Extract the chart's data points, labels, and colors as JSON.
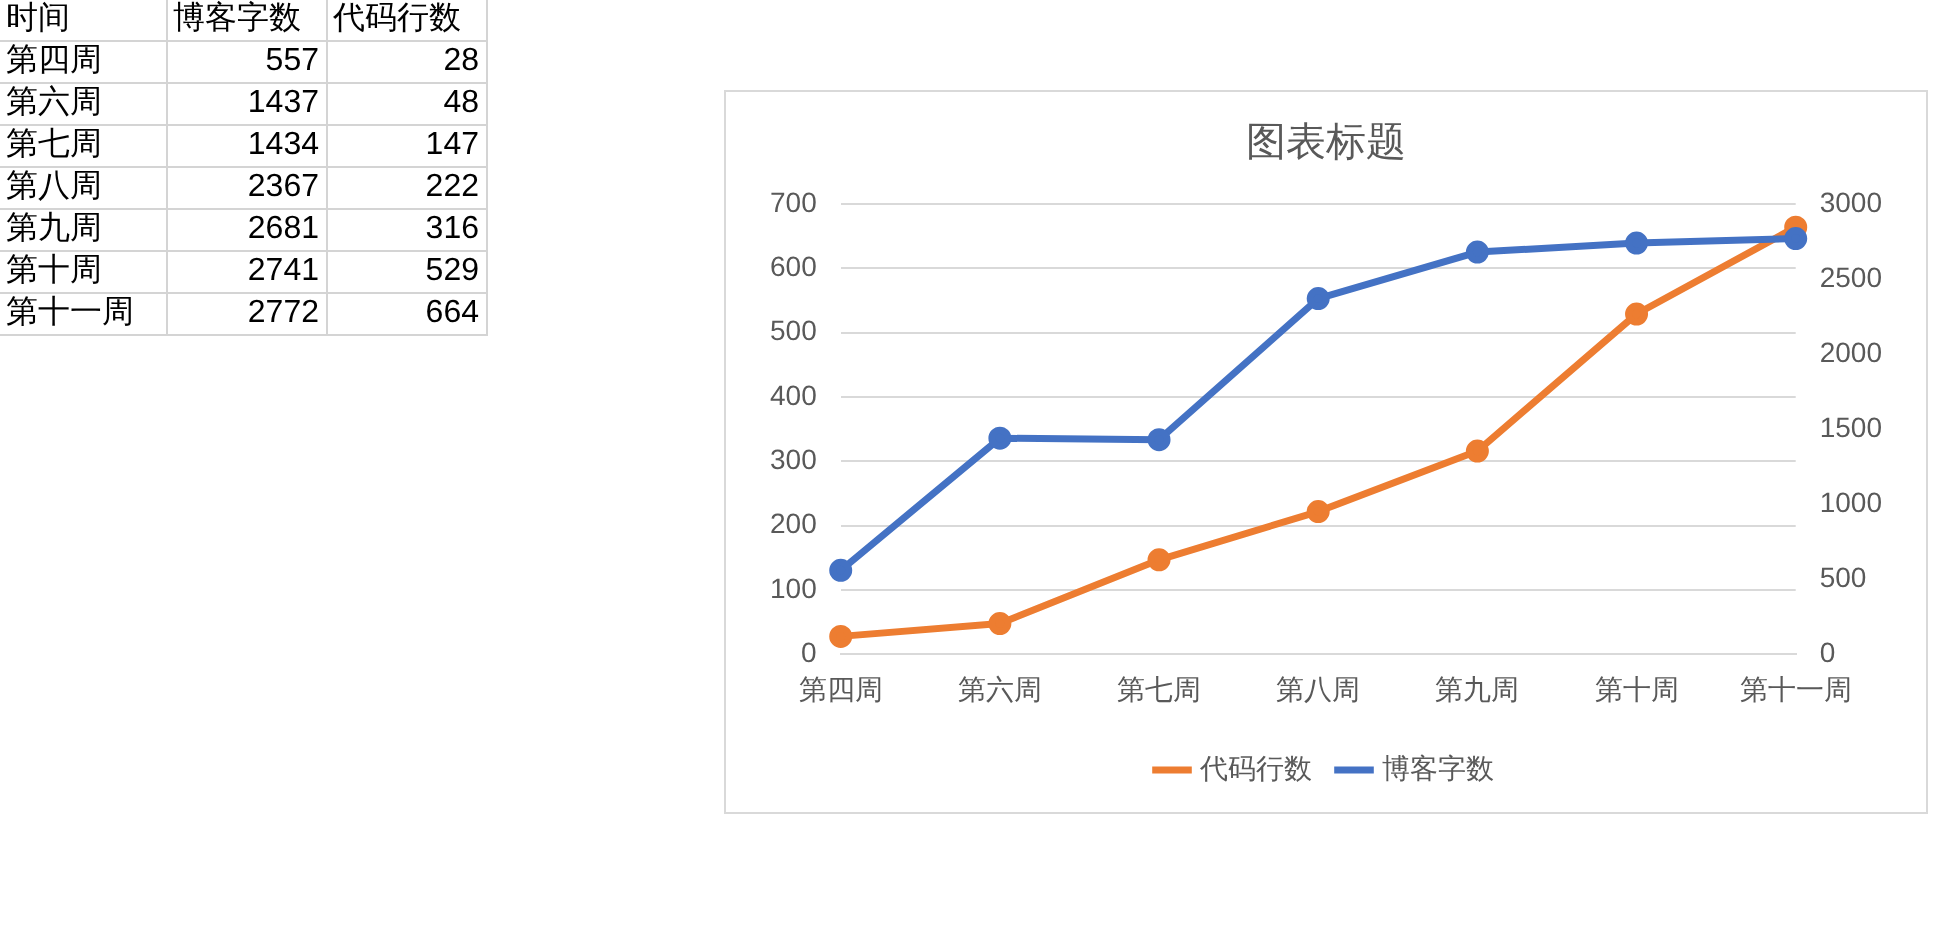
{
  "chart_data": [
    {
      "type": "other",
      "annotations": [
        "时间"
      ],
      "data_labels": true,
      "categories": [
        "第四周",
        "第六周",
        "第七周",
        "第八周",
        "第九周",
        "第十周",
        "第十一周"
      ],
      "series": [
        {
          "name": "博客字数",
          "values": [
            557,
            1437,
            1434,
            2367,
            2681,
            2741,
            2772
          ]
        },
        {
          "name": "代码行数",
          "values": [
            28,
            48,
            147,
            222,
            316,
            529,
            664
          ]
        }
      ]
    },
    {
      "type": "line",
      "title": "图表标题",
      "categories": [
        "第四周",
        "第六周",
        "第七周",
        "第八周",
        "第九周",
        "第十周",
        "第十一周"
      ],
      "series": [
        {
          "name": "博客字数",
          "color": "#4472c4",
          "axis": "y2",
          "values": [
            560,
            1440,
            1430,
            2370,
            2680,
            2740,
            2770
          ]
        },
        {
          "name": "代码行数",
          "color": "#ed7d31",
          "values": [
            28,
            48,
            147,
            222,
            316,
            529,
            664
          ]
        }
      ],
      "ylim": [
        0,
        700
      ],
      "yticks": [
        0,
        100,
        200,
        300,
        400,
        500,
        600,
        700
      ],
      "y2lim": [
        0,
        3000
      ],
      "y2ticks": [
        0,
        500,
        1000,
        1500,
        2000,
        2500,
        3000
      ],
      "grid": "y",
      "legend": "bottom",
      "marker": "circle",
      "line_style": "solid"
    }
  ]
}
